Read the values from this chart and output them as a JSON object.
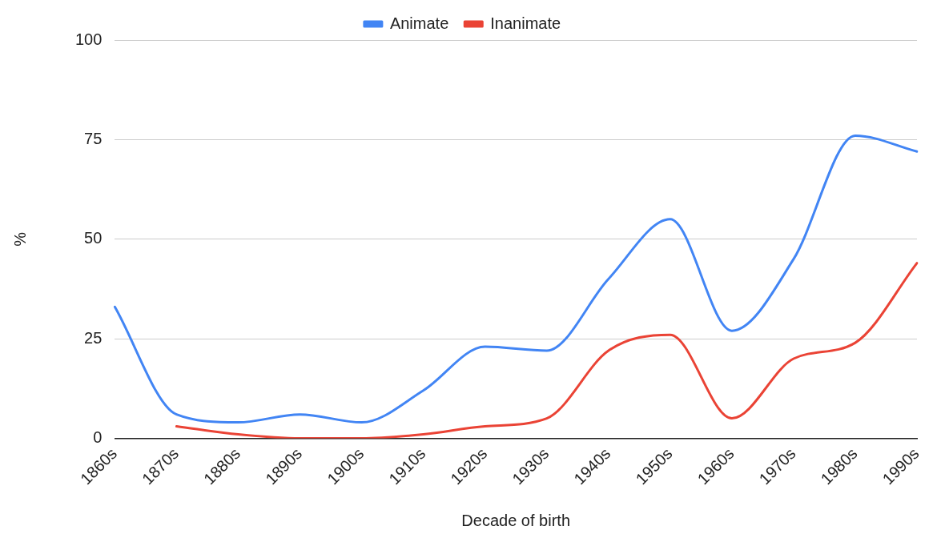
{
  "chart_data": {
    "type": "line",
    "xlabel": "Decade of birth",
    "ylabel": "%",
    "categories": [
      "1860s",
      "1870s",
      "1880s",
      "1890s",
      "1900s",
      "1910s",
      "1920s",
      "1930s",
      "1940s",
      "1950s",
      "1960s",
      "1970s",
      "1980s",
      "1990s"
    ],
    "series": [
      {
        "name": "Animate",
        "color": "#4285f4",
        "values": [
          33,
          6,
          4,
          6,
          4,
          12,
          23,
          22,
          40,
          55,
          27,
          45,
          76,
          72
        ]
      },
      {
        "name": "Inanimate",
        "color": "#ea4335",
        "values": [
          null,
          3,
          1,
          0,
          0,
          1,
          3,
          5,
          22,
          26,
          5,
          20,
          24,
          44
        ]
      }
    ],
    "ylim": [
      0,
      100
    ],
    "yticks": [
      0,
      25,
      50,
      75,
      100
    ],
    "grid": "y",
    "legend": "top",
    "marker": "none",
    "line_style": "solid"
  }
}
